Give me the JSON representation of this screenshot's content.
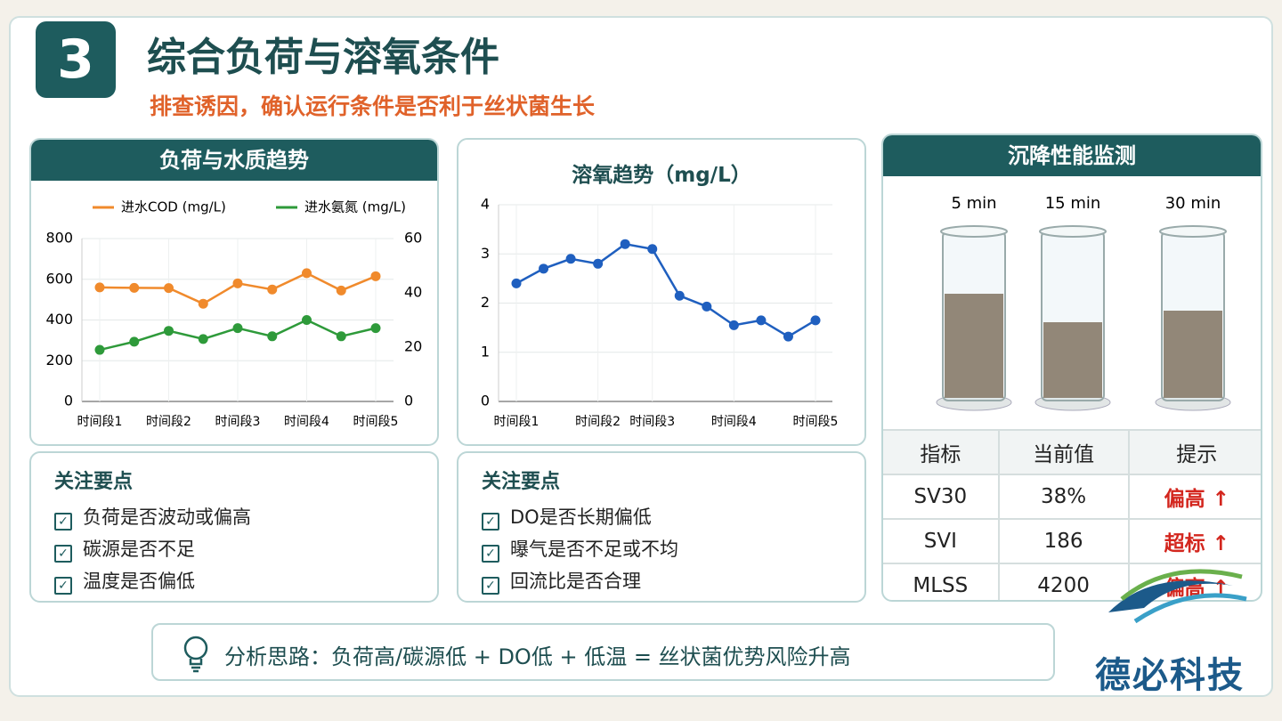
{
  "header": {
    "number": "3",
    "title": "综合负荷与溶氧条件",
    "subtitle": "排查诱因，确认运行条件是否利于丝状菌生长"
  },
  "chart_data": [
    {
      "type": "line",
      "title": "负荷与水质趋势",
      "categories": [
        "时间段1",
        null,
        "时间段2",
        null,
        "时间段3",
        null,
        "时间段4",
        null,
        "时间段5"
      ],
      "series": [
        {
          "name": "进水COD (mg/L)",
          "color": "#f08a2c",
          "values": [
            560,
            558,
            557,
            480,
            580,
            550,
            630,
            545,
            615
          ]
        },
        {
          "name": "进水氨氮 (mg/L)",
          "color": "#2e9a3a",
          "axis": "y2",
          "values": [
            19,
            22,
            26,
            23,
            27,
            24,
            30,
            24,
            27
          ]
        }
      ],
      "ylim": [
        0,
        800
      ],
      "yticks": [
        0,
        200,
        400,
        600,
        800
      ],
      "y2lim": [
        0,
        60
      ],
      "y2ticks": [
        0,
        20,
        40,
        60
      ],
      "grid": true
    },
    {
      "type": "line",
      "title": "溶氧趋势（mg/L）",
      "categories": [
        "时间段1",
        null,
        null,
        "时间段2",
        null,
        "时间段3",
        null,
        null,
        "时间段4",
        null,
        null,
        "时间段5"
      ],
      "values": [
        2.4,
        2.7,
        2.9,
        2.8,
        3.2,
        3.1,
        2.15,
        1.93,
        1.55,
        1.65,
        1.32,
        1.65
      ],
      "color": "#1f5fbf",
      "ylim": [
        0,
        4
      ],
      "yticks": [
        0,
        1,
        2,
        3,
        4
      ],
      "grid": true
    }
  ],
  "notes": [
    {
      "title": "关注要点",
      "items": [
        "负荷是否波动或偏高",
        "碳源是否不足",
        "温度是否偏低"
      ]
    },
    {
      "title": "关注要点",
      "items": [
        "DO是否长期偏低",
        "曝气是否不足或不均",
        "回流比是否合理"
      ]
    }
  ],
  "settling": {
    "title": "沉降性能监测",
    "cylinders": [
      "5 min",
      "15 min",
      "30 min"
    ],
    "table": {
      "header": [
        "指标",
        "当前值",
        "提示"
      ],
      "rows": [
        [
          "SV30",
          "38%",
          "偏高 ↑"
        ],
        [
          "SVI",
          "186",
          "超标 ↑"
        ],
        [
          "MLSS",
          "4200",
          "偏高 ↑"
        ]
      ]
    }
  },
  "analysis": "分析思路：负荷高/碳源低 + DO低 + 低温 = 丝状菌优势风险升高",
  "logo": "德必科技"
}
